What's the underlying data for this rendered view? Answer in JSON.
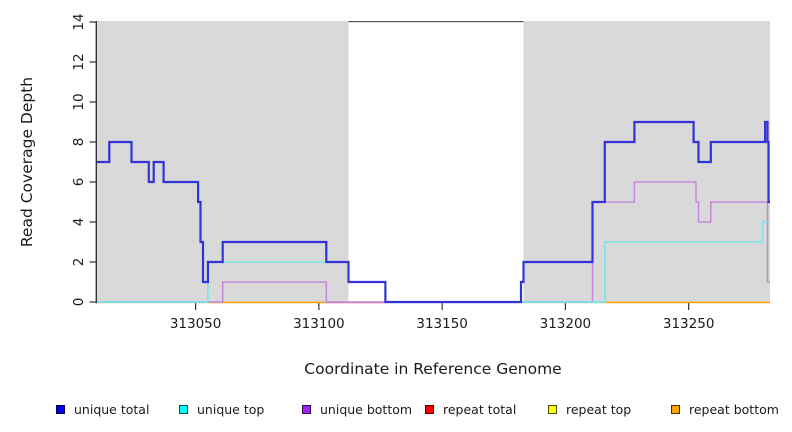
{
  "chart_data": {
    "type": "line",
    "title": "",
    "xlabel": "Coordinate in Reference Genome",
    "ylabel": "Read Coverage Depth",
    "xlim": [
      313010,
      313283
    ],
    "ylim": [
      0,
      14
    ],
    "x_ticks": [
      "313050",
      "313100",
      "313150",
      "313200",
      "313250"
    ],
    "y_ticks": [
      "0",
      "2",
      "4",
      "6",
      "8",
      "10",
      "12",
      "14"
    ],
    "grid": false,
    "legend_position": "bottom",
    "top_rule_y": 14,
    "shaded_regions": [
      {
        "x0": 313010,
        "x1": 313112,
        "color": "#d9d9d9"
      },
      {
        "x0": 313183,
        "x1": 313283,
        "color": "#d9d9d9"
      }
    ],
    "baseline_segments": [
      {
        "x0": 313010,
        "x1": 313055,
        "color": "#95d9a0",
        "note": "unique top + repeat top overlap at 0"
      },
      {
        "x0": 313055,
        "x1": 313103,
        "color": "#ffa216",
        "note": "repeat bottom at 0"
      },
      {
        "x0": 313103,
        "x1": 313127,
        "color": "#dd6688",
        "note": "repeat total at 0"
      },
      {
        "x0": 313127,
        "x1": 313182,
        "color": "#b9b9ef",
        "note": "unique bottom at 0"
      },
      {
        "x0": 313183,
        "x1": 313216,
        "color": "#95d9a0",
        "note": "unique top + repeat top overlap at 0"
      },
      {
        "x0": 313216,
        "x1": 313283,
        "color": "#ffa216",
        "note": "repeat bottom at 0"
      }
    ],
    "series": [
      {
        "name": "unique bottom",
        "color": "#c487de",
        "width": 1.5,
        "draw": true,
        "end": 313283,
        "steps": [
          [
            313010,
            0
          ],
          [
            313061,
            1
          ],
          [
            313103,
            0
          ],
          [
            313211,
            5
          ],
          [
            313228,
            6
          ],
          [
            313253,
            5
          ],
          [
            313254,
            4
          ],
          [
            313259,
            5
          ],
          [
            313282,
            1
          ]
        ]
      },
      {
        "name": "unique top",
        "color": "#79e4e8",
        "width": 1.5,
        "draw": true,
        "end": 313283,
        "steps": [
          [
            313010,
            0
          ],
          [
            313055,
            2
          ],
          [
            313112,
            1
          ],
          [
            313127,
            0
          ],
          [
            313216,
            3
          ],
          [
            313280,
            4
          ]
        ]
      },
      {
        "name": "unique total",
        "color": "#3434d6",
        "width": 2.2,
        "draw": true,
        "end": 313283,
        "steps": [
          [
            313010,
            7
          ],
          [
            313015,
            8
          ],
          [
            313024,
            7
          ],
          [
            313031,
            6
          ],
          [
            313033,
            7
          ],
          [
            313037,
            6
          ],
          [
            313051,
            5
          ],
          [
            313052,
            3
          ],
          [
            313053,
            1
          ],
          [
            313055,
            2
          ],
          [
            313061,
            3
          ],
          [
            313103,
            2
          ],
          [
            313112,
            1
          ],
          [
            313127,
            0
          ],
          [
            313182,
            1
          ],
          [
            313183,
            2
          ],
          [
            313211,
            5
          ],
          [
            313216,
            8
          ],
          [
            313228,
            9
          ],
          [
            313252,
            8
          ],
          [
            313254,
            7
          ],
          [
            313259,
            8
          ],
          [
            313281,
            9
          ],
          [
            313282,
            8
          ],
          [
            313282.4,
            5
          ]
        ]
      },
      {
        "name": "repeat total",
        "color": "#ff0000",
        "width": 1.2,
        "draw": false,
        "end": 313283,
        "steps": [
          [
            313010,
            0
          ]
        ]
      },
      {
        "name": "repeat top",
        "color": "#ffff00",
        "width": 1.2,
        "draw": false,
        "end": 313283,
        "steps": [
          [
            313010,
            0
          ]
        ]
      },
      {
        "name": "repeat bottom",
        "color": "#ffa500",
        "width": 1.2,
        "draw": false,
        "end": 313283,
        "steps": [
          [
            313010,
            0
          ]
        ]
      }
    ]
  },
  "legend": {
    "items": [
      {
        "label": "unique total",
        "color": "#0000ee"
      },
      {
        "label": "unique top",
        "color": "#00ffff"
      },
      {
        "label": "unique bottom",
        "color": "#a020f0"
      },
      {
        "label": "repeat total",
        "color": "#ff0000"
      },
      {
        "label": "repeat top",
        "color": "#ffff00"
      },
      {
        "label": "repeat bottom",
        "color": "#ffa500"
      }
    ]
  }
}
